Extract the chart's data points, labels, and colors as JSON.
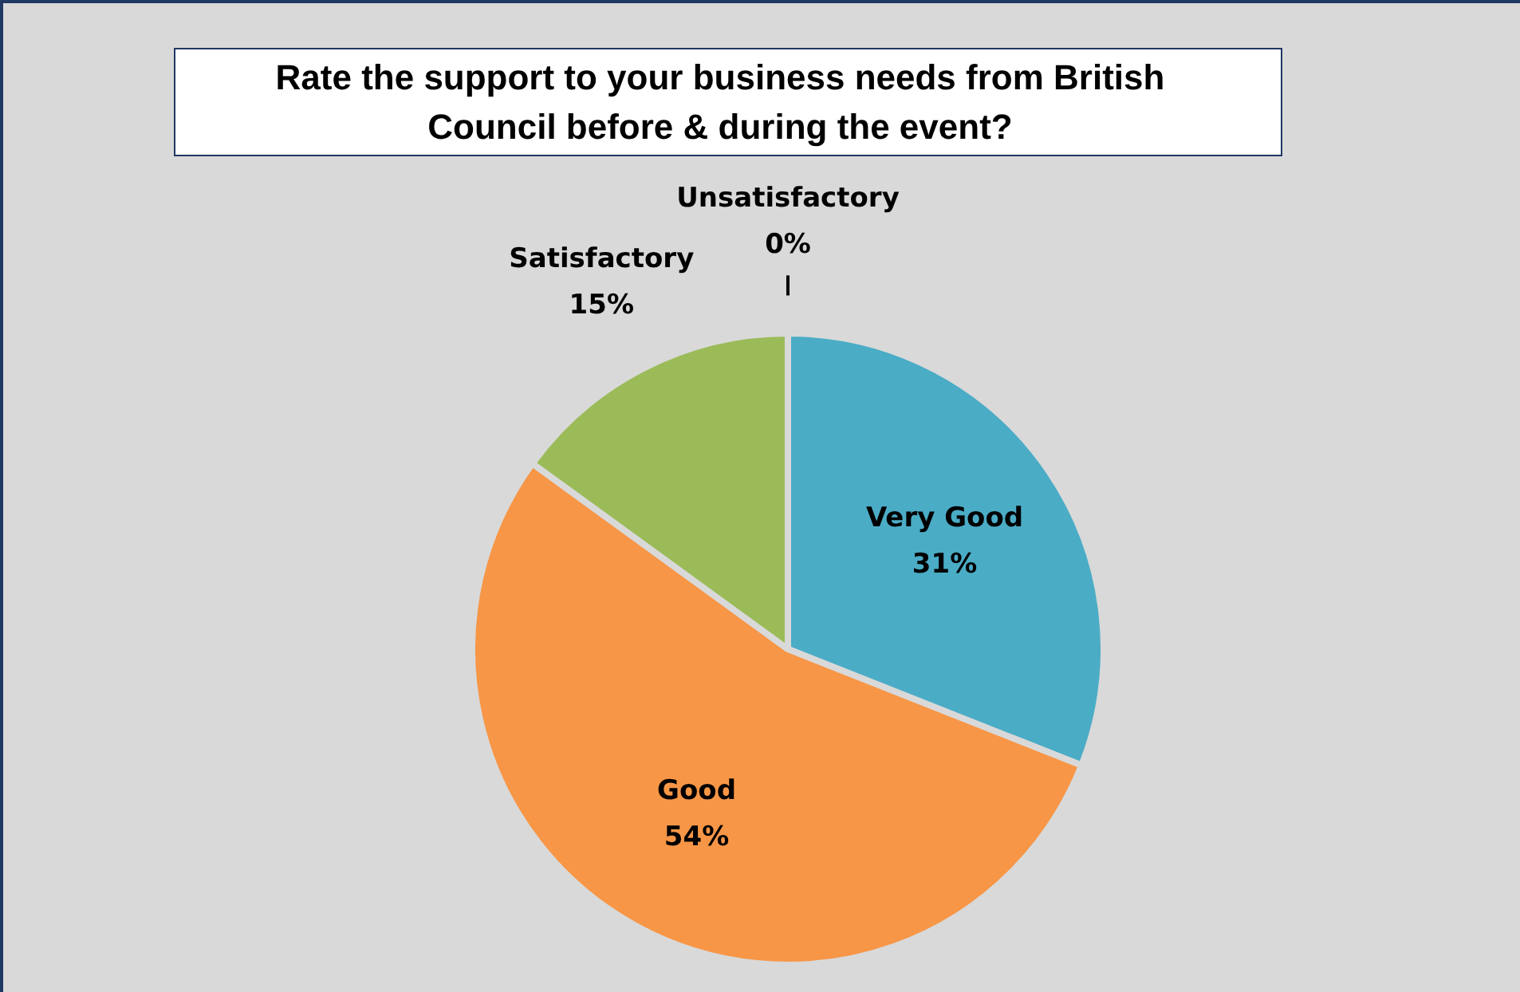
{
  "chart_data": {
    "type": "pie",
    "title": "Rate the support to your business needs from British Council before & during the event?",
    "categories": [
      "Very Good",
      "Good",
      "Satisfactory",
      "Unsatisfactory"
    ],
    "values": [
      31,
      54,
      15,
      0
    ],
    "value_labels": [
      "31%",
      "54%",
      "15%",
      "0%"
    ],
    "colors": [
      "#4bacc6",
      "#f79646",
      "#9bbb59",
      "#8064a2"
    ],
    "legend": false
  }
}
